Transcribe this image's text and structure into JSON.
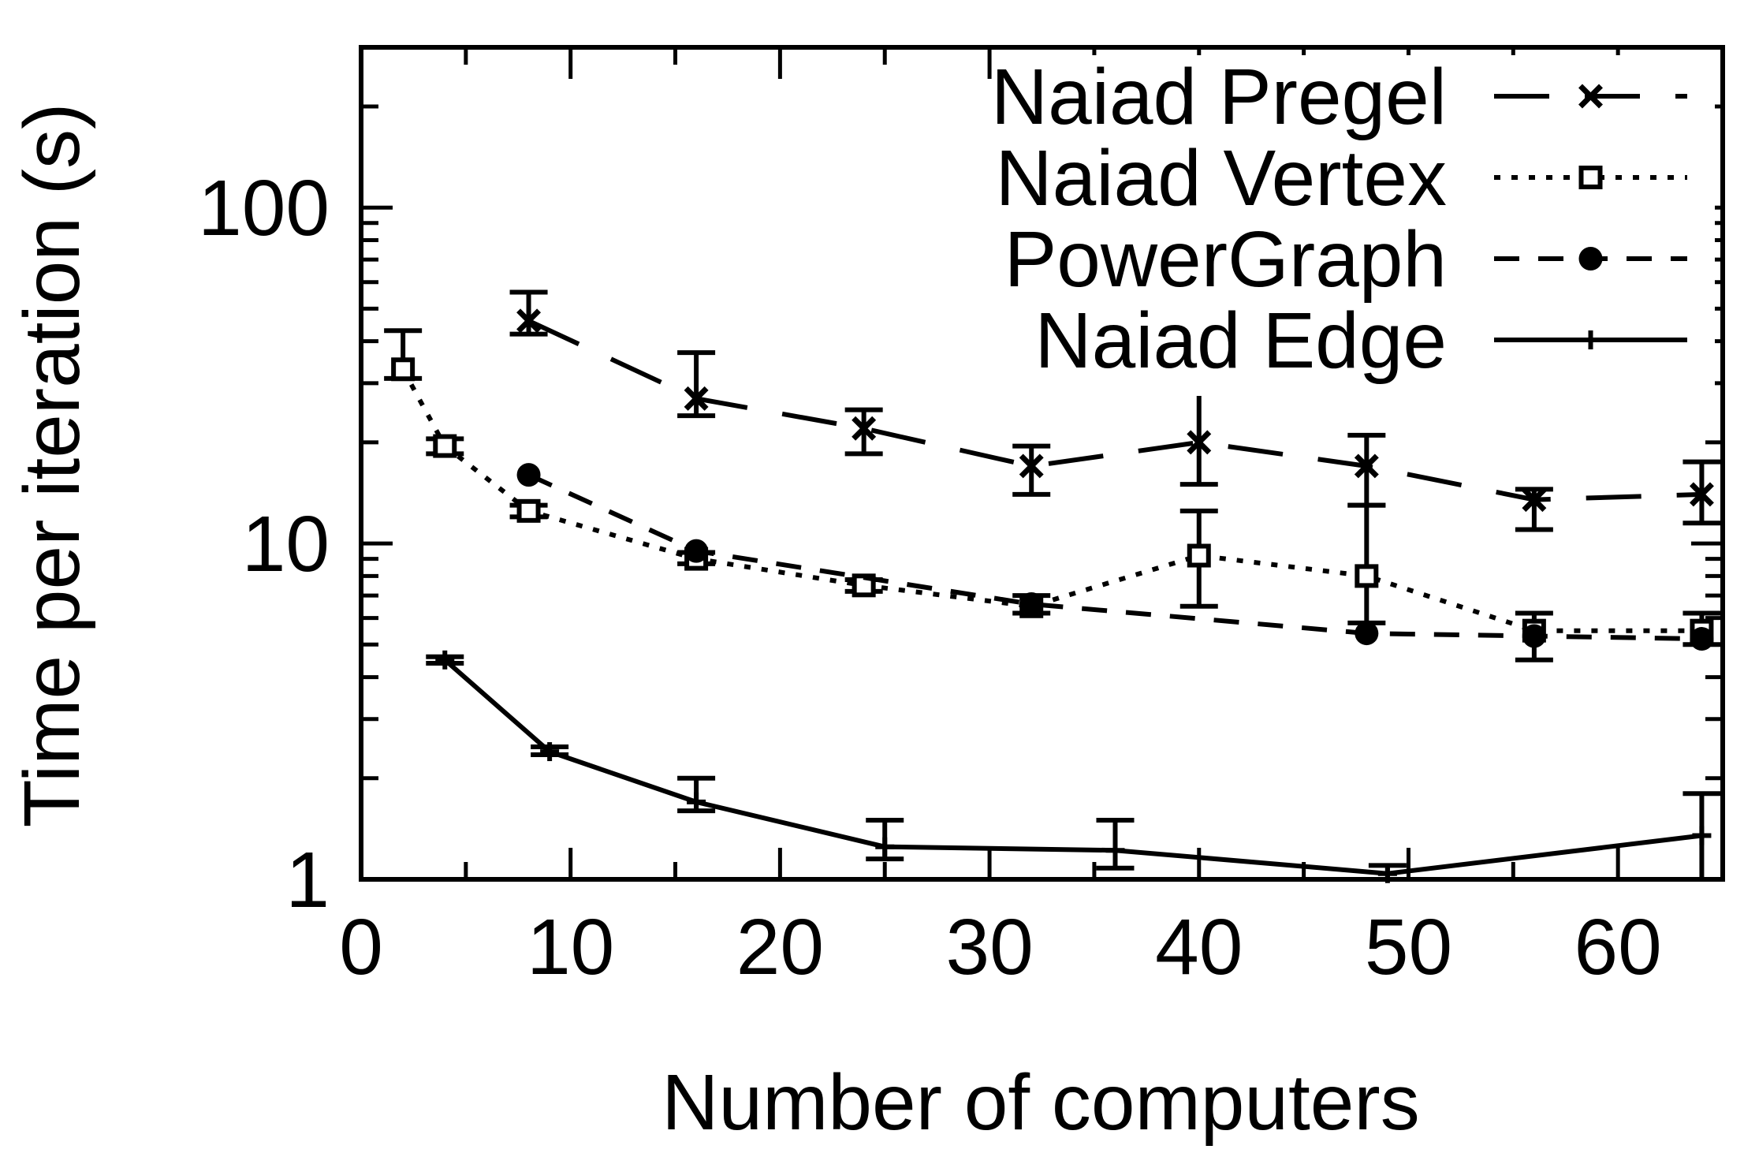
{
  "chart_data": {
    "type": "line",
    "title": "",
    "xlabel": "Number of computers",
    "ylabel": "Time per iteration (s)",
    "xlim": [
      0,
      65
    ],
    "ylim": [
      1,
      300
    ],
    "yscale": "log",
    "x_ticks": [
      0,
      10,
      20,
      30,
      40,
      50,
      60
    ],
    "x_tick_labels": [
      "0",
      "10",
      "20",
      "30",
      "40",
      "50",
      "60"
    ],
    "y_ticks": [
      1,
      10,
      100
    ],
    "y_tick_labels": [
      "1",
      "10",
      "100"
    ],
    "grid": false,
    "legend_position": "top-right",
    "series": [
      {
        "name": "Naiad Pregel",
        "style": "long-dash",
        "marker": "x",
        "points": [
          {
            "x": 8,
            "y": 46,
            "lo": 42,
            "hi": 56
          },
          {
            "x": 16,
            "y": 27,
            "lo": 24,
            "hi": 37
          },
          {
            "x": 24,
            "y": 22,
            "lo": 18.5,
            "hi": 25
          },
          {
            "x": 32,
            "y": 17,
            "lo": 14,
            "hi": 19.5
          },
          {
            "x": 40,
            "y": 20,
            "lo": 15,
            "hi": 30
          },
          {
            "x": 48,
            "y": 17,
            "lo": 13,
            "hi": 21
          },
          {
            "x": 56,
            "y": 13.5,
            "lo": 11,
            "hi": 14.5
          },
          {
            "x": 64,
            "y": 14,
            "lo": 11.5,
            "hi": 17.5
          }
        ]
      },
      {
        "name": "Naiad Vertex",
        "style": "dotted",
        "marker": "square",
        "points": [
          {
            "x": 2,
            "y": 33,
            "lo": 31,
            "hi": 43
          },
          {
            "x": 4,
            "y": 19.5,
            "lo": 18.5,
            "hi": 20.5
          },
          {
            "x": 8,
            "y": 12.5,
            "lo": 12,
            "hi": 13
          },
          {
            "x": 16,
            "y": 9,
            "lo": 8.7,
            "hi": 9.4
          },
          {
            "x": 24,
            "y": 7.5,
            "lo": 7.2,
            "hi": 7.8
          },
          {
            "x": 32,
            "y": 6.5,
            "lo": 6.2,
            "hi": 7
          },
          {
            "x": 40,
            "y": 9.2,
            "lo": 6.5,
            "hi": 12.5
          },
          {
            "x": 48,
            "y": 8,
            "lo": 5.8,
            "hi": 13
          },
          {
            "x": 56,
            "y": 5.5,
            "lo": 4.5,
            "hi": 6.2
          },
          {
            "x": 64,
            "y": 5.5,
            "lo": 5,
            "hi": 6.2
          }
        ]
      },
      {
        "name": "PowerGraph",
        "style": "short-dash",
        "marker": "circle",
        "points": [
          {
            "x": 8,
            "y": 16
          },
          {
            "x": 16,
            "y": 9.5
          },
          {
            "x": 32,
            "y": 6.6
          },
          {
            "x": 48,
            "y": 5.4
          },
          {
            "x": 56,
            "y": 5.3
          },
          {
            "x": 64,
            "y": 5.2
          }
        ]
      },
      {
        "name": "Naiad Edge",
        "style": "solid",
        "marker": "plus",
        "points": [
          {
            "x": 4,
            "y": 4.5,
            "lo": 4.4,
            "hi": 4.6
          },
          {
            "x": 9,
            "y": 2.4,
            "lo": 2.35,
            "hi": 2.48
          },
          {
            "x": 16,
            "y": 1.7,
            "lo": 1.6,
            "hi": 2.0
          },
          {
            "x": 25,
            "y": 1.25,
            "lo": 1.15,
            "hi": 1.5
          },
          {
            "x": 36,
            "y": 1.22,
            "lo": 1.08,
            "hi": 1.5
          },
          {
            "x": 49,
            "y": 1.04,
            "lo": 1.0,
            "hi": 1.1
          },
          {
            "x": 64,
            "y": 1.35,
            "lo": 1.0,
            "hi": 1.8
          }
        ]
      }
    ]
  }
}
